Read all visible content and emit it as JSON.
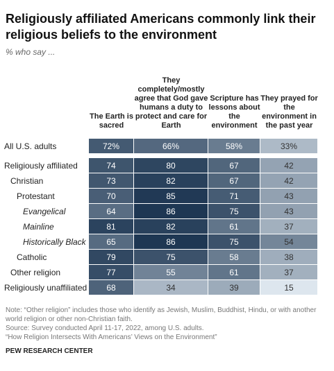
{
  "chart_data": {
    "type": "heatmap",
    "title": "Religiously affiliated Americans commonly link their religious beliefs to the environment",
    "subtitle": "% who say ...",
    "columns": [
      "The Earth is sacred",
      "They completely/mostly agree that God gave humans a duty to protect and care for Earth",
      "Scripture has lessons about the environment",
      "They prayed for the environment in the past year"
    ],
    "color_scale": [
      "#dde6ee",
      "#1e3753"
    ],
    "rows": [
      {
        "label": "All U.S. adults",
        "level": 0,
        "values": [
          72,
          66,
          58,
          33
        ],
        "value_labels": [
          "72%",
          "66%",
          "58%",
          "33%"
        ]
      },
      {
        "label": "Religiously affiliated",
        "level": 0,
        "values": [
          74,
          80,
          67,
          42
        ]
      },
      {
        "label": "Christian",
        "level": 1,
        "values": [
          73,
          82,
          67,
          42
        ]
      },
      {
        "label": "Protestant",
        "level": 2,
        "values": [
          70,
          85,
          71,
          43
        ]
      },
      {
        "label": "Evangelical",
        "level": 3,
        "values": [
          64,
          86,
          75,
          43
        ]
      },
      {
        "label": "Mainline",
        "level": 3,
        "values": [
          81,
          82,
          61,
          37
        ]
      },
      {
        "label": "Historically Black",
        "level": 3,
        "values": [
          65,
          86,
          75,
          54
        ]
      },
      {
        "label": "Catholic",
        "level": 2,
        "values": [
          79,
          75,
          58,
          38
        ]
      },
      {
        "label": "Other religion",
        "level": 1,
        "values": [
          77,
          55,
          61,
          37
        ]
      },
      {
        "label": "Religiously unaffiliated",
        "level": 0,
        "values": [
          68,
          34,
          39,
          15
        ]
      }
    ],
    "notes": [
      "Note: “Other religion” includes those who identify as Jewish, Muslim, Buddhist, Hindu, or with another world religion or other non-Christian faith.",
      "Source: Survey conducted April 11-17, 2022, among U.S. adults.",
      "“How Religion Intersects With Americans’ Views on the Environment”"
    ],
    "source_label": "PEW RESEARCH CENTER"
  }
}
